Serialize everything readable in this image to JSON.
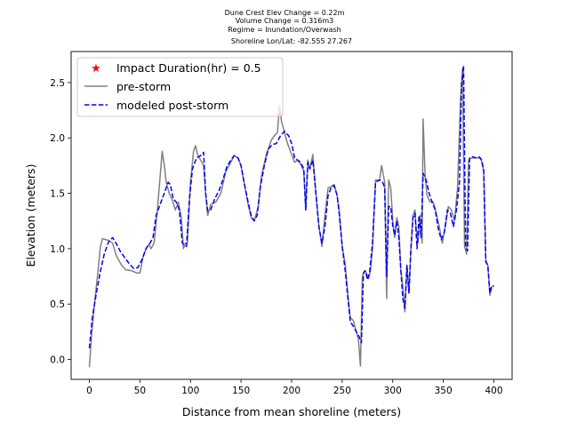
{
  "chart_data": {
    "type": "line",
    "title_lines": [
      "Dune Crest Elev Change = 0.22m",
      "Volume Change = 0.316m3",
      "Regime = Inundation/Overwash",
      "Shoreline Lon/Lat: -82.555 27.267"
    ],
    "xlabel": "Distance from mean shoreline (meters)",
    "ylabel": "Elevation (meters)",
    "xlim": [
      -18,
      418
    ],
    "ylim": [
      -0.18,
      2.78
    ],
    "xticks": [
      0,
      50,
      100,
      150,
      200,
      250,
      300,
      350,
      400
    ],
    "yticks": [
      0.0,
      0.5,
      1.0,
      1.5,
      2.0,
      2.5
    ],
    "xtick_labels": [
      "0",
      "50",
      "100",
      "150",
      "200",
      "250",
      "300",
      "350",
      "400"
    ],
    "ytick_labels": [
      "0.0",
      "0.5",
      "1.0",
      "1.5",
      "2.0",
      "2.5"
    ],
    "legend": {
      "placement": "top-left",
      "entries": [
        {
          "label": "Impact Duration(hr) = 0.5",
          "marker": "star",
          "color": "#ff0000"
        },
        {
          "label": "pre-storm",
          "line": "solid",
          "color": "#808080"
        },
        {
          "label": "modeled post-storm",
          "line": "dashed",
          "color": "#0000ff"
        }
      ]
    },
    "series": [
      {
        "name": "pre-storm",
        "color": "#808080",
        "style": "solid",
        "points": [
          [
            0,
            -0.07
          ],
          [
            2,
            0.2
          ],
          [
            5,
            0.5
          ],
          [
            8,
            0.75
          ],
          [
            11,
            1.02
          ],
          [
            13,
            1.09
          ],
          [
            17,
            1.08
          ],
          [
            20,
            1.07
          ],
          [
            23,
            1.05
          ],
          [
            27,
            0.93
          ],
          [
            32,
            0.85
          ],
          [
            36,
            0.81
          ],
          [
            42,
            0.8
          ],
          [
            47,
            0.78
          ],
          [
            50,
            0.78
          ],
          [
            53,
            0.92
          ],
          [
            56,
            1.0
          ],
          [
            59,
            1.04
          ],
          [
            61,
            1.0
          ],
          [
            64,
            1.05
          ],
          [
            67,
            1.32
          ],
          [
            70,
            1.65
          ],
          [
            72,
            1.88
          ],
          [
            74,
            1.76
          ],
          [
            76,
            1.6
          ],
          [
            79,
            1.5
          ],
          [
            82,
            1.44
          ],
          [
            85,
            1.35
          ],
          [
            88,
            1.42
          ],
          [
            91,
            1.28
          ],
          [
            93,
            1.0
          ],
          [
            95,
            1.05
          ],
          [
            97,
            1.05
          ],
          [
            100,
            1.6
          ],
          [
            103,
            1.88
          ],
          [
            105,
            1.93
          ],
          [
            107,
            1.85
          ],
          [
            110,
            1.8
          ],
          [
            113,
            1.75
          ],
          [
            115,
            1.5
          ],
          [
            117,
            1.3
          ],
          [
            120,
            1.4
          ],
          [
            125,
            1.42
          ],
          [
            130,
            1.5
          ],
          [
            135,
            1.7
          ],
          [
            140,
            1.78
          ],
          [
            143,
            1.84
          ],
          [
            147,
            1.82
          ],
          [
            150,
            1.75
          ],
          [
            153,
            1.6
          ],
          [
            157,
            1.4
          ],
          [
            160,
            1.28
          ],
          [
            163,
            1.25
          ],
          [
            167,
            1.38
          ],
          [
            170,
            1.65
          ],
          [
            175,
            1.85
          ],
          [
            180,
            1.98
          ],
          [
            183,
            2.02
          ],
          [
            186,
            2.05
          ],
          [
            188,
            2.29
          ],
          [
            190,
            2.15
          ],
          [
            193,
            2.05
          ],
          [
            196,
            1.95
          ],
          [
            200,
            1.85
          ],
          [
            203,
            1.78
          ],
          [
            206,
            1.8
          ],
          [
            209,
            1.76
          ],
          [
            212,
            1.7
          ],
          [
            214,
            1.35
          ],
          [
            216,
            1.8
          ],
          [
            218,
            1.72
          ],
          [
            221,
            1.85
          ],
          [
            224,
            1.5
          ],
          [
            227,
            1.2
          ],
          [
            230,
            1.02
          ],
          [
            233,
            1.3
          ],
          [
            236,
            1.55
          ],
          [
            239,
            1.56
          ],
          [
            242,
            1.58
          ],
          [
            245,
            1.48
          ],
          [
            247,
            1.35
          ],
          [
            250,
            1.02
          ],
          [
            253,
            0.86
          ],
          [
            256,
            0.55
          ],
          [
            258,
            0.38
          ],
          [
            261,
            0.35
          ],
          [
            263,
            0.28
          ],
          [
            266,
            0.18
          ],
          [
            268,
            -0.06
          ],
          [
            270,
            0.75
          ],
          [
            272,
            0.8
          ],
          [
            274,
            0.78
          ],
          [
            276,
            0.73
          ],
          [
            278,
            0.8
          ],
          [
            280,
            1.0
          ],
          [
            283,
            1.62
          ],
          [
            287,
            1.62
          ],
          [
            289,
            1.75
          ],
          [
            292,
            1.6
          ],
          [
            293,
            1.05
          ],
          [
            294,
            0.55
          ],
          [
            295,
            1.2
          ],
          [
            296,
            1.62
          ],
          [
            298,
            1.55
          ],
          [
            300,
            1.25
          ],
          [
            302,
            1.1
          ],
          [
            304,
            1.28
          ],
          [
            306,
            1.2
          ],
          [
            308,
            0.8
          ],
          [
            310,
            0.66
          ],
          [
            312,
            0.43
          ],
          [
            314,
            0.85
          ],
          [
            316,
            0.6
          ],
          [
            318,
            1.0
          ],
          [
            320,
            1.3
          ],
          [
            322,
            1.35
          ],
          [
            323,
            1.2
          ],
          [
            325,
            1.05
          ],
          [
            327,
            1.3
          ],
          [
            329,
            1.05
          ],
          [
            330,
            2.17
          ],
          [
            332,
            1.65
          ],
          [
            334,
            1.48
          ],
          [
            337,
            1.42
          ],
          [
            340,
            1.42
          ],
          [
            343,
            1.32
          ],
          [
            346,
            1.2
          ],
          [
            349,
            1.05
          ],
          [
            352,
            1.2
          ],
          [
            355,
            1.38
          ],
          [
            358,
            1.35
          ],
          [
            361,
            1.25
          ],
          [
            364,
            1.55
          ],
          [
            367,
            2.35
          ],
          [
            369,
            2.63
          ],
          [
            371,
            1.02
          ],
          [
            373,
            0.95
          ],
          [
            375,
            1.8
          ],
          [
            378,
            1.82
          ],
          [
            381,
            1.82
          ],
          [
            384,
            1.82
          ],
          [
            387,
            1.82
          ],
          [
            390,
            1.7
          ],
          [
            392,
            0.9
          ],
          [
            394,
            0.85
          ],
          [
            396,
            0.58
          ],
          [
            398,
            0.65
          ]
        ]
      },
      {
        "name": "modeled post-storm",
        "color": "#0000ff",
        "style": "dashed",
        "points": [
          [
            0,
            0.1
          ],
          [
            3,
            0.38
          ],
          [
            7,
            0.6
          ],
          [
            11,
            0.8
          ],
          [
            15,
            0.96
          ],
          [
            19,
            1.06
          ],
          [
            23,
            1.1
          ],
          [
            27,
            1.04
          ],
          [
            31,
            0.97
          ],
          [
            35,
            0.92
          ],
          [
            39,
            0.87
          ],
          [
            44,
            0.82
          ],
          [
            48,
            0.83
          ],
          [
            52,
            0.9
          ],
          [
            56,
            1.0
          ],
          [
            60,
            1.05
          ],
          [
            63,
            1.1
          ],
          [
            66,
            1.3
          ],
          [
            70,
            1.4
          ],
          [
            74,
            1.5
          ],
          [
            78,
            1.6
          ],
          [
            80,
            1.58
          ],
          [
            83,
            1.45
          ],
          [
            86,
            1.42
          ],
          [
            89,
            1.35
          ],
          [
            92,
            1.05
          ],
          [
            96,
            1.02
          ],
          [
            99,
            1.45
          ],
          [
            102,
            1.72
          ],
          [
            106,
            1.82
          ],
          [
            110,
            1.84
          ],
          [
            113,
            1.87
          ],
          [
            115,
            1.5
          ],
          [
            117,
            1.34
          ],
          [
            120,
            1.35
          ],
          [
            124,
            1.45
          ],
          [
            128,
            1.52
          ],
          [
            132,
            1.62
          ],
          [
            136,
            1.74
          ],
          [
            140,
            1.8
          ],
          [
            143,
            1.84
          ],
          [
            147,
            1.82
          ],
          [
            150,
            1.75
          ],
          [
            153,
            1.6
          ],
          [
            157,
            1.42
          ],
          [
            160,
            1.3
          ],
          [
            163,
            1.25
          ],
          [
            166,
            1.3
          ],
          [
            169,
            1.55
          ],
          [
            173,
            1.75
          ],
          [
            177,
            1.9
          ],
          [
            181,
            1.94
          ],
          [
            185,
            1.95
          ],
          [
            189,
            2.02
          ],
          [
            193,
            2.06
          ],
          [
            197,
            2.02
          ],
          [
            200,
            1.95
          ],
          [
            203,
            1.82
          ],
          [
            206,
            1.8
          ],
          [
            209,
            1.78
          ],
          [
            212,
            1.72
          ],
          [
            214,
            1.35
          ],
          [
            216,
            1.78
          ],
          [
            218,
            1.72
          ],
          [
            221,
            1.8
          ],
          [
            224,
            1.5
          ],
          [
            227,
            1.2
          ],
          [
            230,
            1.05
          ],
          [
            233,
            1.2
          ],
          [
            236,
            1.48
          ],
          [
            239,
            1.55
          ],
          [
            242,
            1.57
          ],
          [
            245,
            1.48
          ],
          [
            247,
            1.32
          ],
          [
            250,
            1.02
          ],
          [
            253,
            0.8
          ],
          [
            256,
            0.52
          ],
          [
            258,
            0.34
          ],
          [
            261,
            0.3
          ],
          [
            264,
            0.25
          ],
          [
            267,
            0.2
          ],
          [
            269,
            0.15
          ],
          [
            271,
            0.78
          ],
          [
            273,
            0.8
          ],
          [
            275,
            0.72
          ],
          [
            277,
            0.78
          ],
          [
            280,
            1.05
          ],
          [
            283,
            1.6
          ],
          [
            287,
            1.62
          ],
          [
            290,
            1.6
          ],
          [
            292,
            1.55
          ],
          [
            294,
            0.75
          ],
          [
            296,
            1.38
          ],
          [
            298,
            1.38
          ],
          [
            300,
            1.2
          ],
          [
            302,
            1.12
          ],
          [
            304,
            1.25
          ],
          [
            306,
            1.1
          ],
          [
            308,
            0.8
          ],
          [
            310,
            0.55
          ],
          [
            312,
            0.46
          ],
          [
            314,
            0.85
          ],
          [
            316,
            0.6
          ],
          [
            318,
            1.0
          ],
          [
            320,
            1.28
          ],
          [
            322,
            1.32
          ],
          [
            324,
            1.0
          ],
          [
            326,
            1.3
          ],
          [
            328,
            1.1
          ],
          [
            330,
            1.68
          ],
          [
            333,
            1.62
          ],
          [
            336,
            1.5
          ],
          [
            339,
            1.42
          ],
          [
            342,
            1.35
          ],
          [
            345,
            1.18
          ],
          [
            348,
            1.08
          ],
          [
            351,
            1.15
          ],
          [
            354,
            1.35
          ],
          [
            357,
            1.32
          ],
          [
            360,
            1.2
          ],
          [
            363,
            1.35
          ],
          [
            366,
            1.6
          ],
          [
            368,
            2.48
          ],
          [
            370,
            2.65
          ],
          [
            372,
            1.02
          ],
          [
            374,
            0.98
          ],
          [
            376,
            1.82
          ],
          [
            379,
            1.83
          ],
          [
            382,
            1.82
          ],
          [
            385,
            1.83
          ],
          [
            388,
            1.8
          ],
          [
            390,
            1.7
          ],
          [
            392,
            0.88
          ],
          [
            394,
            0.85
          ],
          [
            396,
            0.6
          ],
          [
            398,
            0.67
          ],
          [
            400,
            0.66
          ]
        ]
      }
    ],
    "star_point": [
      188,
      2.22
    ]
  }
}
